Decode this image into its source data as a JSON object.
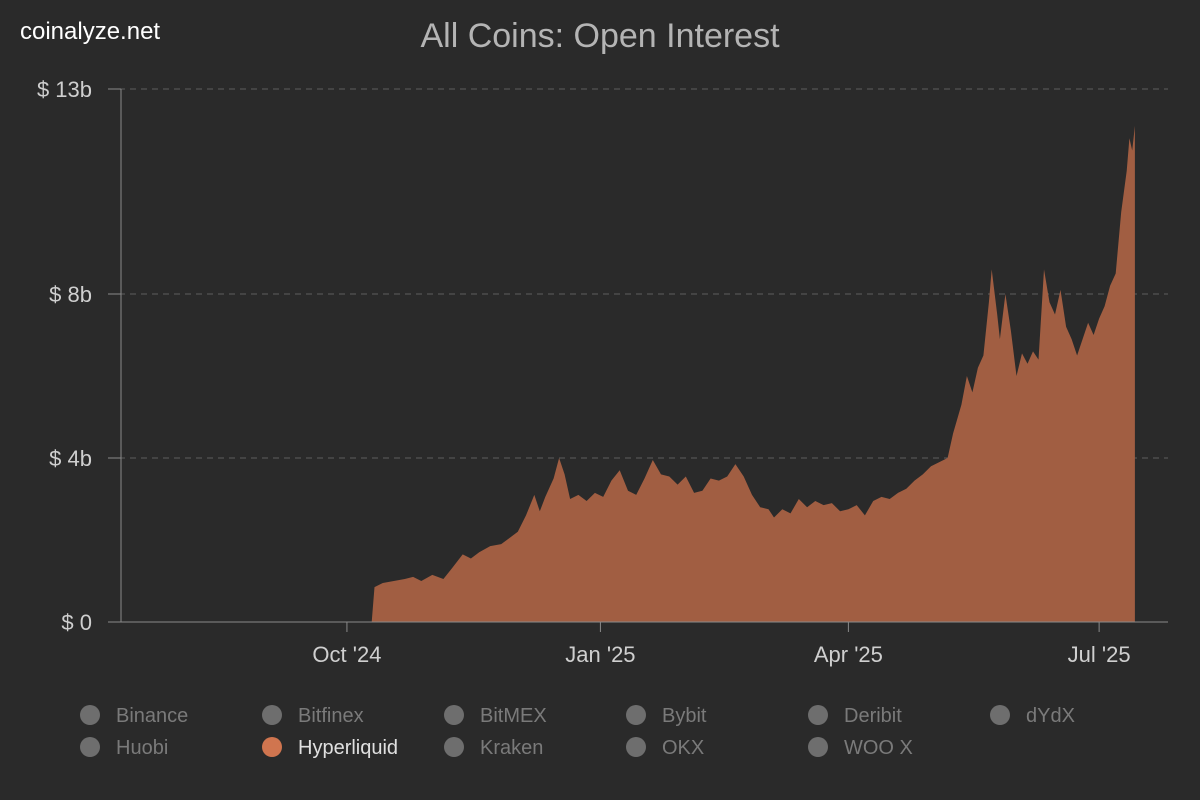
{
  "brand": "coinalyze.net",
  "chart_data": {
    "type": "area",
    "title": "All Coins: Open Interest",
    "xlabel": "",
    "ylabel": "",
    "x_range": [
      "2024-07-11",
      "2025-07-26"
    ],
    "ylim": [
      0,
      13
    ],
    "y_ticks": [
      {
        "value": 0,
        "label": "$ 0"
      },
      {
        "value": 4,
        "label": "$ 4b"
      },
      {
        "value": 8,
        "label": "$ 8b"
      },
      {
        "value": 13,
        "label": "$ 13b"
      }
    ],
    "x_ticks": [
      {
        "date": "2024-10-01",
        "label": "Oct '24"
      },
      {
        "date": "2025-01-01",
        "label": "Jan '25"
      },
      {
        "date": "2025-04-01",
        "label": "Apr '25"
      },
      {
        "date": "2025-07-01",
        "label": "Jul '25"
      }
    ],
    "grid": true,
    "legend_position": "bottom",
    "series": [
      {
        "name": "Hyperliquid",
        "color": "#a15e42",
        "legend_color": "#d0754f",
        "points": [
          [
            "2024-10-10",
            0
          ],
          [
            "2024-10-11",
            0.85
          ],
          [
            "2024-10-14",
            0.95
          ],
          [
            "2024-10-18",
            1.0
          ],
          [
            "2024-10-22",
            1.05
          ],
          [
            "2024-10-25",
            1.1
          ],
          [
            "2024-10-28",
            1.0
          ],
          [
            "2024-11-01",
            1.15
          ],
          [
            "2024-11-05",
            1.05
          ],
          [
            "2024-11-08",
            1.3
          ],
          [
            "2024-11-12",
            1.65
          ],
          [
            "2024-11-15",
            1.55
          ],
          [
            "2024-11-18",
            1.7
          ],
          [
            "2024-11-22",
            1.85
          ],
          [
            "2024-11-26",
            1.9
          ],
          [
            "2024-11-29",
            2.05
          ],
          [
            "2024-12-02",
            2.2
          ],
          [
            "2024-12-05",
            2.6
          ],
          [
            "2024-12-08",
            3.1
          ],
          [
            "2024-12-10",
            2.7
          ],
          [
            "2024-12-12",
            3.05
          ],
          [
            "2024-12-15",
            3.5
          ],
          [
            "2024-12-17",
            4.0
          ],
          [
            "2024-12-19",
            3.6
          ],
          [
            "2024-12-21",
            3.0
          ],
          [
            "2024-12-24",
            3.1
          ],
          [
            "2024-12-27",
            2.95
          ],
          [
            "2024-12-30",
            3.15
          ],
          [
            "2025-01-02",
            3.05
          ],
          [
            "2025-01-05",
            3.45
          ],
          [
            "2025-01-08",
            3.7
          ],
          [
            "2025-01-11",
            3.2
          ],
          [
            "2025-01-14",
            3.1
          ],
          [
            "2025-01-17",
            3.5
          ],
          [
            "2025-01-20",
            3.95
          ],
          [
            "2025-01-23",
            3.6
          ],
          [
            "2025-01-26",
            3.55
          ],
          [
            "2025-01-29",
            3.35
          ],
          [
            "2025-02-01",
            3.55
          ],
          [
            "2025-02-04",
            3.15
          ],
          [
            "2025-02-07",
            3.2
          ],
          [
            "2025-02-10",
            3.5
          ],
          [
            "2025-02-13",
            3.45
          ],
          [
            "2025-02-16",
            3.55
          ],
          [
            "2025-02-19",
            3.85
          ],
          [
            "2025-02-22",
            3.55
          ],
          [
            "2025-02-25",
            3.1
          ],
          [
            "2025-02-28",
            2.8
          ],
          [
            "2025-03-03",
            2.75
          ],
          [
            "2025-03-05",
            2.55
          ],
          [
            "2025-03-08",
            2.75
          ],
          [
            "2025-03-11",
            2.65
          ],
          [
            "2025-03-14",
            3.0
          ],
          [
            "2025-03-17",
            2.8
          ],
          [
            "2025-03-20",
            2.95
          ],
          [
            "2025-03-23",
            2.85
          ],
          [
            "2025-03-26",
            2.9
          ],
          [
            "2025-03-29",
            2.7
          ],
          [
            "2025-04-01",
            2.75
          ],
          [
            "2025-04-04",
            2.85
          ],
          [
            "2025-04-07",
            2.6
          ],
          [
            "2025-04-10",
            2.95
          ],
          [
            "2025-04-13",
            3.05
          ],
          [
            "2025-04-16",
            3.0
          ],
          [
            "2025-04-19",
            3.15
          ],
          [
            "2025-04-22",
            3.25
          ],
          [
            "2025-04-25",
            3.45
          ],
          [
            "2025-04-28",
            3.6
          ],
          [
            "2025-05-01",
            3.8
          ],
          [
            "2025-05-04",
            3.9
          ],
          [
            "2025-05-07",
            4.0
          ],
          [
            "2025-05-09",
            4.6
          ],
          [
            "2025-05-12",
            5.3
          ],
          [
            "2025-05-14",
            6.0
          ],
          [
            "2025-05-16",
            5.6
          ],
          [
            "2025-05-18",
            6.2
          ],
          [
            "2025-05-20",
            6.5
          ],
          [
            "2025-05-22",
            7.8
          ],
          [
            "2025-05-23",
            8.6
          ],
          [
            "2025-05-25",
            7.5
          ],
          [
            "2025-05-26",
            6.9
          ],
          [
            "2025-05-28",
            8.0
          ],
          [
            "2025-05-30",
            7.1
          ],
          [
            "2025-06-01",
            6.0
          ],
          [
            "2025-06-03",
            6.55
          ],
          [
            "2025-06-05",
            6.3
          ],
          [
            "2025-06-07",
            6.6
          ],
          [
            "2025-06-09",
            6.4
          ],
          [
            "2025-06-11",
            8.6
          ],
          [
            "2025-06-13",
            7.8
          ],
          [
            "2025-06-15",
            7.5
          ],
          [
            "2025-06-17",
            8.1
          ],
          [
            "2025-06-19",
            7.2
          ],
          [
            "2025-06-21",
            6.9
          ],
          [
            "2025-06-23",
            6.5
          ],
          [
            "2025-06-25",
            6.9
          ],
          [
            "2025-06-27",
            7.3
          ],
          [
            "2025-06-29",
            7.0
          ],
          [
            "2025-07-01",
            7.4
          ],
          [
            "2025-07-03",
            7.7
          ],
          [
            "2025-07-05",
            8.2
          ],
          [
            "2025-07-07",
            8.5
          ],
          [
            "2025-07-09",
            10.0
          ],
          [
            "2025-07-11",
            11.0
          ],
          [
            "2025-07-12",
            11.8
          ],
          [
            "2025-07-13",
            11.5
          ],
          [
            "2025-07-14",
            12.1
          ],
          [
            "2025-07-14",
            0
          ]
        ]
      }
    ]
  },
  "legend": [
    {
      "label": "Binance",
      "active": false
    },
    {
      "label": "Bitfinex",
      "active": false
    },
    {
      "label": "BitMEX",
      "active": false
    },
    {
      "label": "Bybit",
      "active": false
    },
    {
      "label": "Deribit",
      "active": false
    },
    {
      "label": "dYdX",
      "active": false
    },
    {
      "label": "Huobi",
      "active": false
    },
    {
      "label": "Hyperliquid",
      "active": true
    },
    {
      "label": "Kraken",
      "active": false
    },
    {
      "label": "OKX",
      "active": false
    },
    {
      "label": "WOO X",
      "active": false
    }
  ],
  "colors": {
    "background": "#2a2a2a",
    "legend_inactive": "#6e6e6e"
  }
}
